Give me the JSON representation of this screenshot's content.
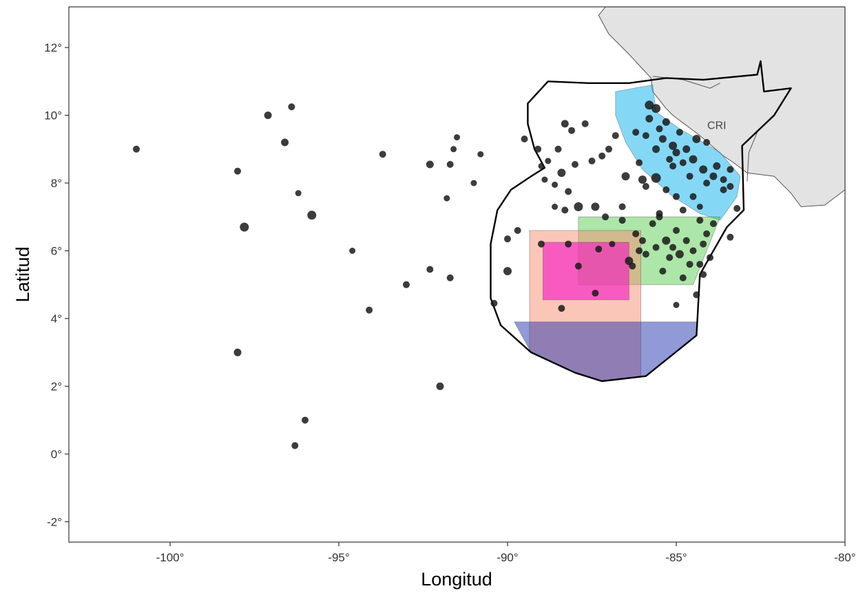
{
  "chart_data": {
    "type": "scatter",
    "title": "",
    "xlabel": "Longitud",
    "ylabel": "Latitud",
    "xlim": [
      -103,
      -80
    ],
    "ylim": [
      -2.6,
      13.2
    ],
    "x_ticks": [
      {
        "value": -100,
        "label": "-100°"
      },
      {
        "value": -95,
        "label": "-95°"
      },
      {
        "value": -90,
        "label": "-90°"
      },
      {
        "value": -85,
        "label": "-85°"
      },
      {
        "value": -80,
        "label": "-80°"
      }
    ],
    "y_ticks": [
      {
        "value": -2,
        "label": "-2°"
      },
      {
        "value": 0,
        "label": "0°"
      },
      {
        "value": 2,
        "label": "2°"
      },
      {
        "value": 4,
        "label": "4°"
      },
      {
        "value": 6,
        "label": "6°"
      },
      {
        "value": 8,
        "label": "8°"
      },
      {
        "value": 10,
        "label": "10°"
      },
      {
        "value": 12,
        "label": "12°"
      }
    ],
    "grid": false,
    "country_label": {
      "text": "CRI",
      "lon": -83.8,
      "lat": 9.6
    },
    "colors": {
      "land": "#e3e3e3",
      "point": "#1a1a1a",
      "zone_cyan": "#1fb8ee",
      "zone_green": "#49c841",
      "zone_salmon": "#f58e72",
      "zone_magenta": "#f514c3",
      "zone_blue": "#2434b0"
    },
    "eez_boundary": [
      [
        -88.8,
        11.0
      ],
      [
        -87.6,
        10.95
      ],
      [
        -86.4,
        10.95
      ],
      [
        -85.3,
        11.1
      ],
      [
        -84.2,
        11.05
      ],
      [
        -82.6,
        11.2
      ],
      [
        -82.5,
        11.6
      ],
      [
        -82.4,
        10.7
      ],
      [
        -81.6,
        10.8
      ],
      [
        -82.1,
        10.0
      ],
      [
        -83.05,
        9.1
      ],
      [
        -83.0,
        7.2
      ],
      [
        -83.5,
        6.7
      ],
      [
        -84.3,
        5.3
      ],
      [
        -84.4,
        3.5
      ],
      [
        -85.9,
        2.3
      ],
      [
        -87.2,
        2.15
      ],
      [
        -88.0,
        2.4
      ],
      [
        -89.3,
        3.0
      ],
      [
        -90.2,
        3.8
      ],
      [
        -90.5,
        4.6
      ],
      [
        -90.5,
        6.2
      ],
      [
        -90.3,
        7.2
      ],
      [
        -89.9,
        7.8
      ],
      [
        -89.3,
        8.2
      ],
      [
        -88.9,
        8.45
      ],
      [
        -89.2,
        9.0
      ],
      [
        -89.4,
        9.75
      ],
      [
        -89.4,
        10.35
      ],
      [
        -88.8,
        11.0
      ]
    ],
    "land_polygons": [
      [
        [
          -87.1,
          13.2
        ],
        [
          -80.0,
          13.2
        ],
        [
          -80.0,
          7.8
        ],
        [
          -80.6,
          7.35
        ],
        [
          -81.3,
          7.3
        ],
        [
          -81.6,
          7.7
        ],
        [
          -82.1,
          8.2
        ],
        [
          -82.9,
          8.3
        ],
        [
          -83.3,
          8.6
        ],
        [
          -83.6,
          8.8
        ],
        [
          -84.3,
          9.4
        ],
        [
          -84.7,
          9.7
        ],
        [
          -85.1,
          10.0
        ],
        [
          -85.3,
          10.2
        ],
        [
          -85.7,
          10.7
        ],
        [
          -85.75,
          11.1
        ],
        [
          -86.4,
          11.8
        ],
        [
          -87.0,
          12.4
        ],
        [
          -87.3,
          12.95
        ],
        [
          -87.1,
          13.2
        ]
      ]
    ],
    "country_borders": [
      [
        [
          -85.7,
          11.15
        ],
        [
          -84.8,
          11.05
        ],
        [
          -84.0,
          10.8
        ],
        [
          -83.7,
          10.95
        ]
      ],
      [
        [
          -82.9,
          8.05
        ],
        [
          -82.85,
          8.9
        ],
        [
          -82.6,
          9.5
        ]
      ]
    ],
    "zones": [
      {
        "color_key": "zone_cyan",
        "opacity": 0.55,
        "polygon": [
          [
            -86.8,
            10.7
          ],
          [
            -85.7,
            10.9
          ],
          [
            -85.6,
            10.1
          ],
          [
            -84.9,
            9.6
          ],
          [
            -84.2,
            9.2
          ],
          [
            -83.7,
            8.9
          ],
          [
            -83.1,
            8.2
          ],
          [
            -83.2,
            7.6
          ],
          [
            -83.7,
            6.9
          ],
          [
            -84.3,
            7.1
          ],
          [
            -85.1,
            7.6
          ],
          [
            -86.0,
            8.4
          ],
          [
            -86.5,
            9.2
          ],
          [
            -86.8,
            10.0
          ]
        ]
      },
      {
        "color_key": "zone_green",
        "opacity": 0.45,
        "polygon": [
          [
            -87.9,
            7.0
          ],
          [
            -83.7,
            7.0
          ],
          [
            -84.5,
            5.0
          ],
          [
            -87.9,
            5.0
          ]
        ]
      },
      {
        "color_key": "zone_salmon",
        "opacity": 0.5,
        "polygon": [
          [
            -89.35,
            6.6
          ],
          [
            -86.05,
            6.6
          ],
          [
            -86.05,
            2.3
          ],
          [
            -87.2,
            2.15
          ],
          [
            -88.0,
            2.4
          ],
          [
            -89.35,
            3.05
          ]
        ]
      },
      {
        "color_key": "zone_magenta",
        "opacity": 0.6,
        "polygon": [
          [
            -88.95,
            6.25
          ],
          [
            -86.4,
            6.25
          ],
          [
            -86.4,
            4.55
          ],
          [
            -88.95,
            4.55
          ]
        ]
      },
      {
        "color_key": "zone_blue",
        "opacity": 0.5,
        "polygon": [
          [
            -89.8,
            3.9
          ],
          [
            -84.4,
            3.9
          ],
          [
            -84.4,
            3.5
          ],
          [
            -85.9,
            2.3
          ],
          [
            -87.2,
            2.15
          ],
          [
            -88.0,
            2.4
          ],
          [
            -89.3,
            3.0
          ]
        ]
      }
    ],
    "points": [
      [
        -101,
        9.0,
        5
      ],
      [
        -98.0,
        8.35,
        5
      ],
      [
        -97.1,
        10.0,
        5.5
      ],
      [
        -96.6,
        9.2,
        5.5
      ],
      [
        -96.4,
        10.25,
        5
      ],
      [
        -96.2,
        7.7,
        4.5
      ],
      [
        -95.8,
        7.05,
        6.5
      ],
      [
        -97.8,
        6.7,
        6.5
      ],
      [
        -94.6,
        6.0,
        4.5
      ],
      [
        -93.7,
        8.85,
        5
      ],
      [
        -92.3,
        8.55,
        5.5
      ],
      [
        -91.5,
        9.35,
        4.5
      ],
      [
        -91.6,
        9.0,
        4.5
      ],
      [
        -91.7,
        8.55,
        5
      ],
      [
        -91.8,
        7.55,
        4.5
      ],
      [
        -91.0,
        8.0,
        4.5
      ],
      [
        -90.8,
        8.85,
        4.5
      ],
      [
        -92.3,
        5.45,
        5
      ],
      [
        -91.7,
        5.2,
        5
      ],
      [
        -93.0,
        5.0,
        5
      ],
      [
        -94.1,
        4.25,
        5
      ],
      [
        -90.4,
        4.45,
        5
      ],
      [
        -98.0,
        3.0,
        5.5
      ],
      [
        -92.0,
        2.0,
        5.5
      ],
      [
        -96.0,
        1.0,
        5
      ],
      [
        -96.3,
        0.25,
        5
      ],
      [
        -90.0,
        6.35,
        5
      ],
      [
        -89.7,
        6.6,
        5
      ],
      [
        -90.0,
        5.4,
        6
      ],
      [
        -89.5,
        9.3,
        5
      ],
      [
        -89.1,
        9.0,
        5
      ],
      [
        -88.8,
        8.65,
        4.5
      ],
      [
        -88.5,
        9.0,
        5
      ],
      [
        -88.3,
        9.75,
        5.5
      ],
      [
        -88.1,
        9.55,
        5
      ],
      [
        -87.7,
        9.75,
        5
      ],
      [
        -88.0,
        8.55,
        5
      ],
      [
        -87.5,
        8.65,
        5
      ],
      [
        -87.2,
        8.8,
        5
      ],
      [
        -87.0,
        9.0,
        5
      ],
      [
        -86.8,
        9.4,
        5
      ],
      [
        -88.4,
        8.3,
        6
      ],
      [
        -88.2,
        7.75,
        5
      ],
      [
        -88.6,
        7.95,
        4.5
      ],
      [
        -88.9,
        8.1,
        4.5
      ],
      [
        -89.0,
        8.5,
        4.5
      ],
      [
        -86.5,
        8.2,
        6
      ],
      [
        -86.1,
        8.6,
        5
      ],
      [
        -86.0,
        8.1,
        6
      ],
      [
        -85.6,
        8.15,
        7
      ],
      [
        -85.1,
        8.5,
        5
      ],
      [
        -85.3,
        7.8,
        5
      ],
      [
        -85.0,
        7.6,
        5
      ],
      [
        -84.8,
        7.2,
        5
      ],
      [
        -84.5,
        7.6,
        5
      ],
      [
        -84.3,
        7.3,
        4.5
      ],
      [
        -85.9,
        7.9,
        5
      ],
      [
        -86.6,
        7.3,
        5
      ],
      [
        -87.4,
        7.3,
        6
      ],
      [
        -87.9,
        7.3,
        6.5
      ],
      [
        -88.3,
        7.2,
        5
      ],
      [
        -88.6,
        7.3,
        4.5
      ],
      [
        -87.1,
        7.0,
        5
      ],
      [
        -85.5,
        7.1,
        5
      ],
      [
        -83.2,
        7.25,
        5
      ],
      [
        -83.4,
        6.4,
        5
      ],
      [
        -84.2,
        5.3,
        5
      ],
      [
        -84.4,
        4.7,
        5
      ],
      [
        -85.0,
        4.4,
        4.5
      ],
      [
        -89.0,
        6.2,
        5
      ],
      [
        -88.2,
        6.2,
        5
      ],
      [
        -87.3,
        6.05,
        5
      ],
      [
        -86.9,
        6.2,
        4.5
      ],
      [
        -86.4,
        5.7,
        6
      ],
      [
        -86.3,
        5.55,
        5
      ],
      [
        -87.9,
        5.55,
        5
      ],
      [
        -87.4,
        4.75,
        5
      ],
      [
        -88.4,
        4.3,
        5
      ],
      [
        -86.0,
        6.3,
        5
      ],
      [
        -85.8,
        10.3,
        6.5
      ],
      [
        -85.6,
        10.2,
        6.5
      ],
      [
        -85.3,
        9.8,
        5.5
      ],
      [
        -85.8,
        9.9,
        5.5
      ],
      [
        -85.4,
        9.3,
        5.5
      ],
      [
        -85.1,
        9.1,
        6
      ],
      [
        -84.7,
        9.0,
        5.5
      ],
      [
        -85.0,
        8.9,
        5.5
      ],
      [
        -84.5,
        8.7,
        6
      ],
      [
        -84.8,
        8.6,
        5
      ],
      [
        -84.2,
        8.4,
        6
      ],
      [
        -83.9,
        8.2,
        5.5
      ],
      [
        -84.1,
        8.0,
        5
      ],
      [
        -83.6,
        8.1,
        5
      ],
      [
        -84.6,
        8.2,
        5
      ],
      [
        -85.6,
        9.0,
        5.5
      ],
      [
        -85.2,
        8.7,
        5
      ],
      [
        -83.8,
        8.5,
        5.5
      ],
      [
        -83.4,
        8.4,
        5
      ],
      [
        -83.6,
        7.8,
        5
      ],
      [
        -84.1,
        9.2,
        5
      ],
      [
        -85.9,
        9.4,
        5
      ],
      [
        -86.2,
        9.5,
        5
      ],
      [
        -85.5,
        9.6,
        5
      ],
      [
        -83.4,
        7.9,
        5
      ],
      [
        -84.4,
        9.3,
        6
      ],
      [
        -84.9,
        9.5,
        5
      ],
      [
        -86.6,
        6.9,
        5
      ],
      [
        -86.2,
        6.5,
        5
      ],
      [
        -85.7,
        6.8,
        5
      ],
      [
        -85.3,
        6.3,
        6
      ],
      [
        -85.0,
        6.6,
        5
      ],
      [
        -84.7,
        6.3,
        5
      ],
      [
        -84.3,
        6.9,
        5
      ],
      [
        -84.1,
        6.5,
        5
      ],
      [
        -84.9,
        5.9,
        6
      ],
      [
        -85.2,
        5.8,
        5
      ],
      [
        -84.6,
        5.6,
        5
      ],
      [
        -84.3,
        5.6,
        5
      ],
      [
        -85.6,
        6.1,
        5
      ],
      [
        -86.1,
        6.0,
        5
      ],
      [
        -85.4,
        5.4,
        5
      ],
      [
        -84.8,
        5.2,
        5
      ],
      [
        -85.5,
        7.0,
        5
      ],
      [
        -84.2,
        6.2,
        5
      ],
      [
        -83.9,
        6.8,
        5
      ],
      [
        -85.9,
        5.9,
        5
      ],
      [
        -85.1,
        6.1,
        5
      ],
      [
        -84.5,
        6.0,
        5
      ],
      [
        -84.0,
        5.8,
        5
      ]
    ]
  }
}
